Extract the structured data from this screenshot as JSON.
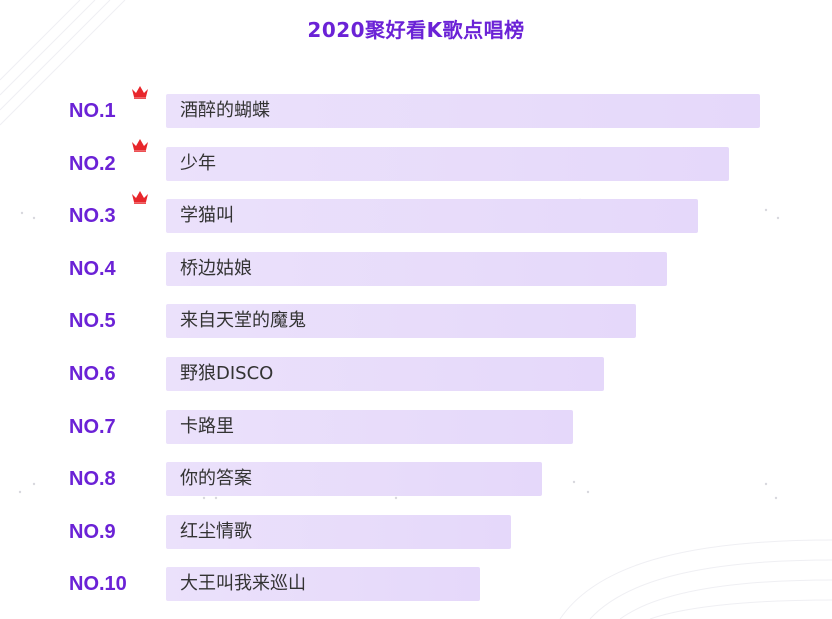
{
  "title": "2020聚好看K歌点唱榜",
  "colors": {
    "accent": "#6b22d6",
    "bar": "#e8dcfa",
    "crown": "#e8262b",
    "text": "#333333"
  },
  "chart_data": {
    "type": "bar",
    "orientation": "horizontal",
    "title": "2020聚好看K歌点唱榜",
    "categories": [
      "NO.1",
      "NO.2",
      "NO.3",
      "NO.4",
      "NO.5",
      "NO.6",
      "NO.7",
      "NO.8",
      "NO.9",
      "NO.10"
    ],
    "songs": [
      "酒醉的蝴蝶",
      "少年",
      "学猫叫",
      "桥边姑娘",
      "来自天堂的魔鬼",
      "野狼DISCO",
      "卡路里",
      "你的答案",
      "红尘情歌",
      "大王叫我来巡山"
    ],
    "values": [
      10,
      9,
      8,
      7,
      6,
      5,
      4,
      3,
      2,
      1
    ],
    "crowned_top": 3,
    "crown_icon": "crown-icon"
  }
}
